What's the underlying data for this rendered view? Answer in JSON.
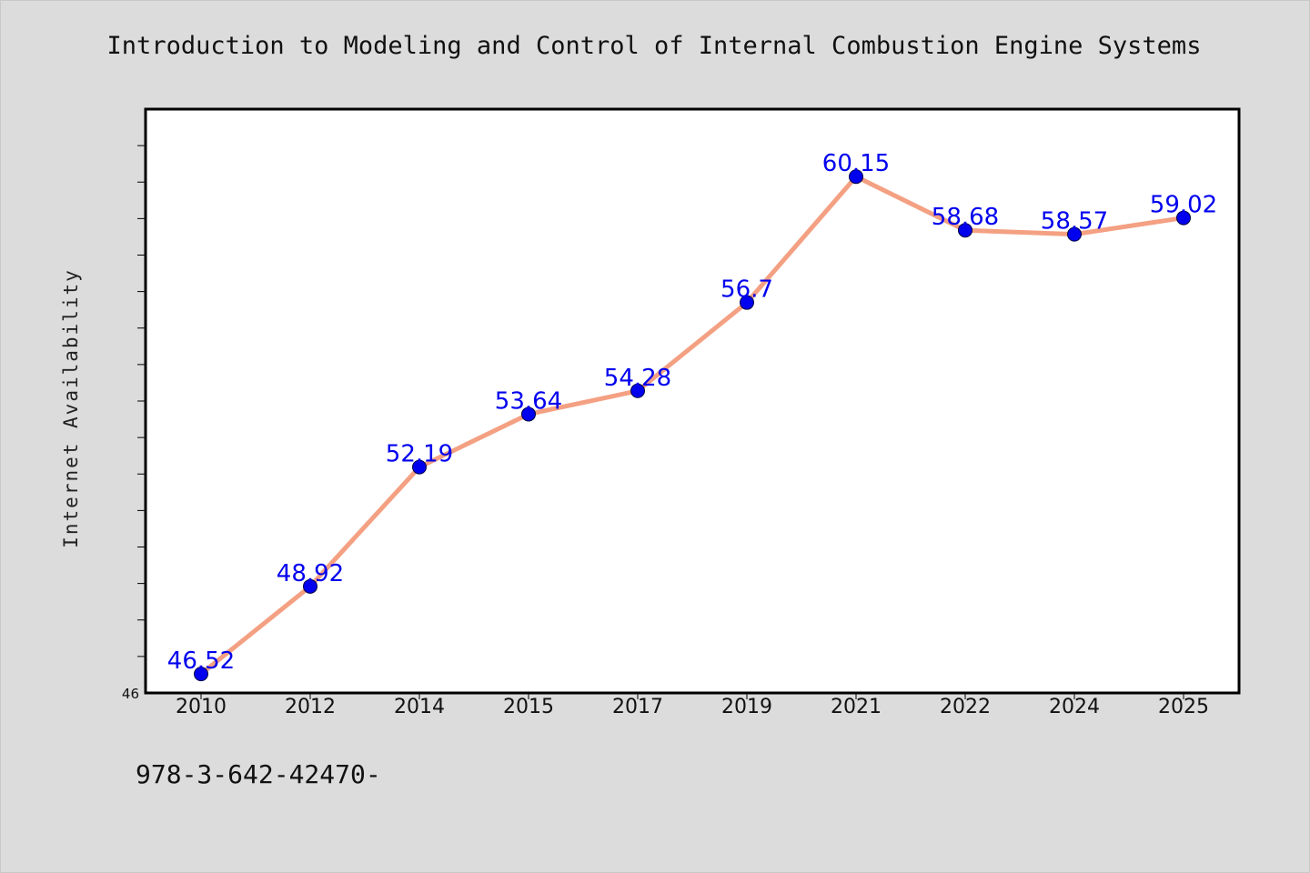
{
  "chart_data": {
    "type": "line",
    "title": "Introduction to Modeling and Control of Internal Combustion Engine Systems",
    "xlabel": "",
    "ylabel": "Internet Availability",
    "categories": [
      "2010",
      "2012",
      "2014",
      "2015",
      "2017",
      "2019",
      "2021",
      "2022",
      "2024",
      "2025"
    ],
    "series": [
      {
        "values": [
          46.52,
          48.92,
          52.19,
          53.64,
          54.28,
          56.7,
          60.15,
          58.68,
          58.57,
          59.02
        ]
      }
    ],
    "data_labels": [
      "46.52",
      "48.92",
      "52.19",
      "53.64",
      "54.28",
      "56.7",
      "60.15",
      "58.68",
      "58.57",
      "59.02"
    ],
    "ylim": [
      46,
      62
    ],
    "ytick_labels": [
      "46"
    ],
    "grid": false,
    "legend": "none",
    "colors": {
      "line": "#f4a082",
      "marker": "#0000ee",
      "label": "#0000ee",
      "plot_background": "#ffffff",
      "figure_background": "#dcdcdc"
    }
  },
  "footer": {
    "text": "978-3-642-42470-"
  }
}
